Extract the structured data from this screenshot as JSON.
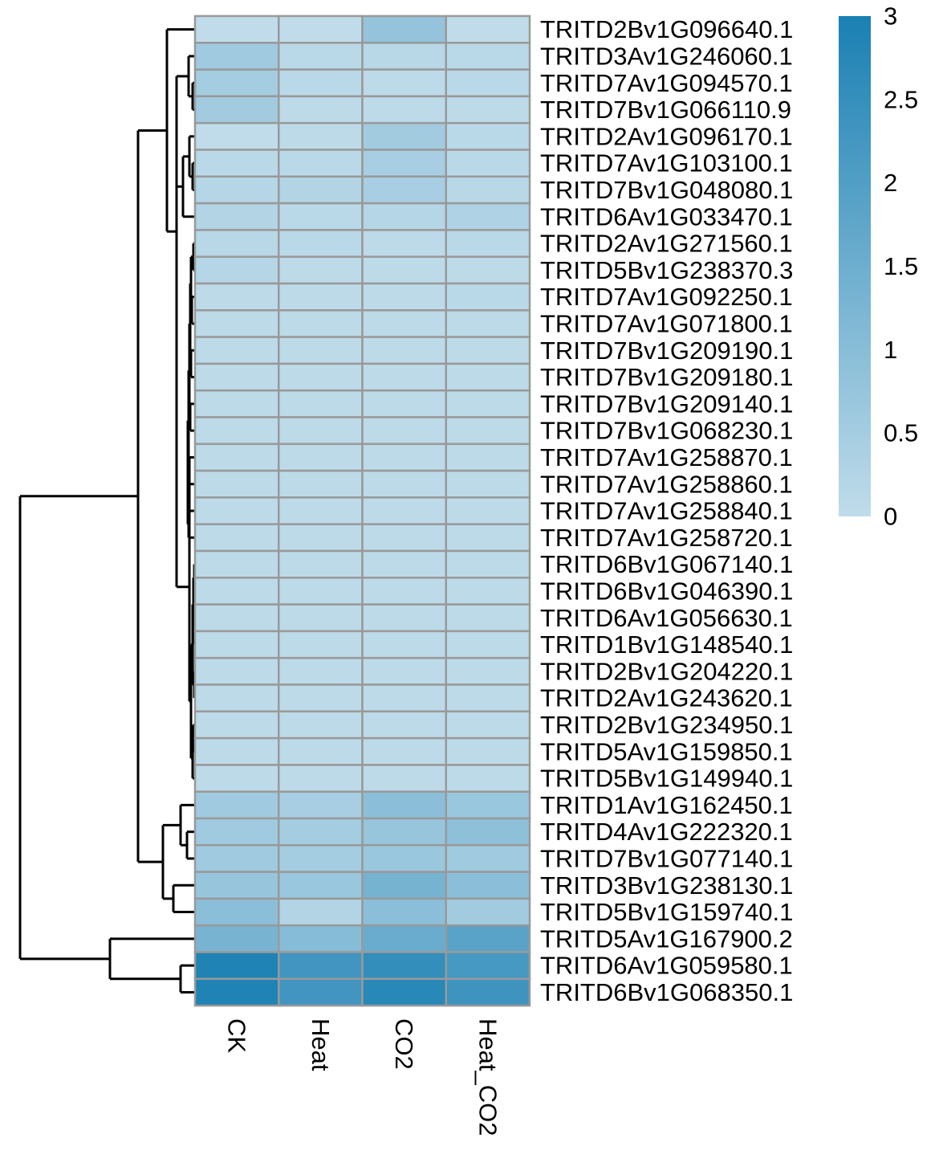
{
  "chart_data": {
    "type": "heatmap",
    "rows": [
      "TRITD2Bv1G096640.1",
      "TRITD3Av1G246060.1",
      "TRITD7Av1G094570.1",
      "TRITD7Bv1G066110.9",
      "TRITD2Av1G096170.1",
      "TRITD7Av1G103100.1",
      "TRITD7Bv1G048080.1",
      "TRITD6Av1G033470.1",
      "TRITD2Av1G271560.1",
      "TRITD5Bv1G238370.3",
      "TRITD7Av1G092250.1",
      "TRITD7Av1G071800.1",
      "TRITD7Bv1G209190.1",
      "TRITD7Bv1G209180.1",
      "TRITD7Bv1G209140.1",
      "TRITD7Bv1G068230.1",
      "TRITD7Av1G258870.1",
      "TRITD7Av1G258860.1",
      "TRITD7Av1G258840.1",
      "TRITD7Av1G258720.1",
      "TRITD6Bv1G067140.1",
      "TRITD6Bv1G046390.1",
      "TRITD6Av1G056630.1",
      "TRITD1Bv1G148540.1",
      "TRITD2Bv1G204220.1",
      "TRITD2Av1G243620.1",
      "TRITD2Bv1G234950.1",
      "TRITD5Av1G159850.1",
      "TRITD5Bv1G149940.1",
      "TRITD1Av1G162450.1",
      "TRITD4Av1G222320.1",
      "TRITD7Bv1G077140.1",
      "TRITD3Bv1G238130.1",
      "TRITD5Bv1G159740.1",
      "TRITD5Av1G167900.2",
      "TRITD6Av1G059580.1",
      "TRITD6Bv1G068350.1"
    ],
    "columns": [
      "CK",
      "Heat",
      "CO2",
      "Heat_CO2"
    ],
    "values": [
      [
        0.0,
        0.0,
        0.8,
        0.0
      ],
      [
        0.6,
        0.1,
        0.15,
        0.1
      ],
      [
        0.5,
        0.1,
        0.05,
        0.1
      ],
      [
        0.55,
        0.05,
        0.05,
        0.05
      ],
      [
        0.0,
        0.05,
        0.55,
        0.1
      ],
      [
        0.1,
        0.1,
        0.45,
        0.1
      ],
      [
        0.2,
        0.25,
        0.45,
        0.15
      ],
      [
        0.25,
        0.1,
        0.2,
        0.3
      ],
      [
        0.15,
        0.1,
        0.05,
        0.1
      ],
      [
        0.2,
        0.05,
        0.05,
        0.05
      ],
      [
        0.05,
        0.05,
        0.05,
        0.1
      ],
      [
        0.05,
        0.05,
        0.05,
        0.05
      ],
      [
        0.05,
        0.05,
        0.05,
        0.05
      ],
      [
        0.05,
        0.05,
        0.05,
        0.05
      ],
      [
        0.05,
        0.05,
        0.05,
        0.05
      ],
      [
        0.05,
        0.05,
        0.05,
        0.05
      ],
      [
        0.05,
        0.05,
        0.05,
        0.05
      ],
      [
        0.05,
        0.05,
        0.05,
        0.05
      ],
      [
        0.05,
        0.05,
        0.05,
        0.05
      ],
      [
        0.05,
        0.05,
        0.05,
        0.05
      ],
      [
        0.05,
        0.05,
        0.05,
        0.05
      ],
      [
        0.05,
        0.05,
        0.05,
        0.05
      ],
      [
        0.05,
        0.05,
        0.05,
        0.05
      ],
      [
        0.05,
        0.05,
        0.05,
        0.05
      ],
      [
        0.05,
        0.05,
        0.05,
        0.05
      ],
      [
        0.05,
        0.05,
        0.05,
        0.05
      ],
      [
        0.05,
        0.05,
        0.05,
        0.05
      ],
      [
        0.05,
        0.05,
        0.05,
        0.05
      ],
      [
        0.05,
        0.05,
        0.05,
        0.05
      ],
      [
        0.6,
        0.45,
        0.95,
        0.7
      ],
      [
        0.6,
        0.5,
        0.75,
        0.9
      ],
      [
        0.6,
        0.5,
        0.7,
        0.6
      ],
      [
        0.75,
        0.7,
        1.35,
        0.95
      ],
      [
        0.95,
        0.25,
        0.95,
        0.55
      ],
      [
        1.3,
        1.05,
        1.55,
        1.85
      ],
      [
        2.9,
        2.3,
        2.55,
        2.2
      ],
      [
        2.9,
        2.3,
        2.75,
        2.35
      ]
    ],
    "color_scale": {
      "min": 0,
      "max": 3,
      "low_color": "#c0dcea",
      "high_color": "#1a80b3"
    },
    "legend": {
      "position": "top-right",
      "ticks": [
        "3",
        "2.5",
        "2",
        "1.5",
        "1",
        "0.5",
        "0"
      ]
    },
    "cell_border_color": "#999999",
    "row_dendrogram": true
  }
}
